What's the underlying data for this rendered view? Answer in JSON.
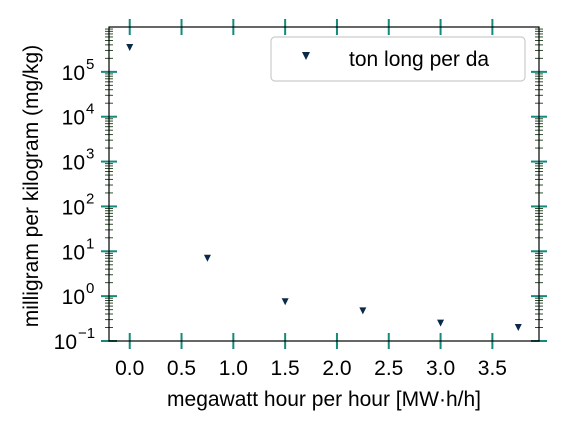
{
  "chart_data": {
    "type": "scatter",
    "title": "",
    "xlabel": "megawatt hour per hour [MW·h/h]",
    "ylabel": "milligram per kilogram (mg/kg)",
    "xlim": [
      -0.2,
      3.95
    ],
    "ylim": [
      0.1,
      1000000
    ],
    "yscale": "log",
    "grid": false,
    "x_ticks": [
      0.0,
      0.5,
      1.0,
      1.5,
      2.0,
      2.5,
      3.0,
      3.5
    ],
    "x_tick_labels": [
      "0.0",
      "0.5",
      "1.0",
      "1.5",
      "2.0",
      "2.5",
      "3.0",
      "3.5"
    ],
    "y_tick_exponents": [
      -1,
      0,
      1,
      2,
      3,
      4,
      5
    ],
    "y_tick_labels": [
      {
        "base": "10",
        "exp": "−1"
      },
      {
        "base": "10",
        "exp": "0"
      },
      {
        "base": "10",
        "exp": "1"
      },
      {
        "base": "10",
        "exp": "2"
      },
      {
        "base": "10",
        "exp": "3"
      },
      {
        "base": "10",
        "exp": "4"
      },
      {
        "base": "10",
        "exp": "5"
      }
    ],
    "legend_position": "top-right",
    "series": [
      {
        "name": "ton long per da",
        "color": "#0b2a4a",
        "marker": "triangle-down",
        "x": [
          0.0,
          0.75,
          1.5,
          2.25,
          3.0,
          3.75
        ],
        "y": [
          350000,
          7,
          0.75,
          0.47,
          0.25,
          0.2
        ]
      }
    ],
    "tick_color": "#138a7a",
    "frame_color": "#000000"
  }
}
